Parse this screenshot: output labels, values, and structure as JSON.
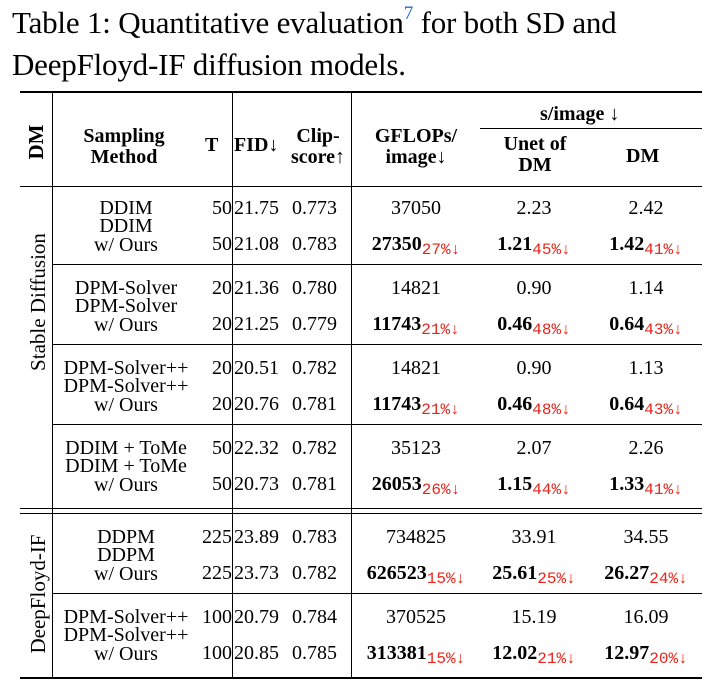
{
  "caption": {
    "text_before": "Table 1: Quantitative evaluation",
    "footnote": "7",
    "text_after": " for both SD and DeepFloyd-IF diffusion models."
  },
  "headers": {
    "dm": "DM",
    "sampling_method_1": "Sampling",
    "sampling_method_2": "Method",
    "t": "T",
    "fid": "FID↓",
    "clip_1": "Clip-",
    "clip_2": "score↑",
    "gflops_1": "GFLOPs/",
    "gflops_2": "image↓",
    "s_image": "s/image ↓",
    "unet_1": "Unet of",
    "unet_2": "DM",
    "dm_col": "DM"
  },
  "groups": [
    {
      "label": "Stable Diffusion",
      "name": "stable-diffusion"
    },
    {
      "label": "DeepFloyd-IF",
      "name": "deepfloyd-if"
    }
  ],
  "rows": [
    {
      "method": "DDIM",
      "method_2": "",
      "t": "50",
      "fid": "21.75",
      "clip": "0.773",
      "gflops": "37050",
      "gflops_red": "",
      "unet": "2.23",
      "unet_red": "",
      "dm": "2.42",
      "dm_red": ""
    },
    {
      "method": "DDIM",
      "method_2": "w/ Ours",
      "t": "50",
      "fid": "21.08",
      "clip": "0.783",
      "gflops": "27350",
      "gflops_red": "27%↓",
      "unet": "1.21",
      "unet_red": "45%↓",
      "dm": "1.42",
      "dm_red": "41%↓"
    },
    {
      "method": "DPM-Solver",
      "method_2": "",
      "t": "20",
      "fid": "21.36",
      "clip": "0.780",
      "gflops": "14821",
      "gflops_red": "",
      "unet": "0.90",
      "unet_red": "",
      "dm": "1.14",
      "dm_red": ""
    },
    {
      "method": "DPM-Solver",
      "method_2": "w/ Ours",
      "t": "20",
      "fid": "21.25",
      "clip": "0.779",
      "gflops": "11743",
      "gflops_red": "21%↓",
      "unet": "0.46",
      "unet_red": "48%↓",
      "dm": "0.64",
      "dm_red": "43%↓"
    },
    {
      "method": "DPM-Solver++",
      "method_2": "",
      "t": "20",
      "fid": "20.51",
      "clip": "0.782",
      "gflops": "14821",
      "gflops_red": "",
      "unet": "0.90",
      "unet_red": "",
      "dm": "1.13",
      "dm_red": ""
    },
    {
      "method": "DPM-Solver++",
      "method_2": "w/ Ours",
      "t": "20",
      "fid": "20.76",
      "clip": "0.781",
      "gflops": "11743",
      "gflops_red": "21%↓",
      "unet": "0.46",
      "unet_red": "48%↓",
      "dm": "0.64",
      "dm_red": "43%↓"
    },
    {
      "method": "DDIM + ToMe",
      "method_2": "",
      "t": "50",
      "fid": "22.32",
      "clip": "0.782",
      "gflops": "35123",
      "gflops_red": "",
      "unet": "2.07",
      "unet_red": "",
      "dm": "2.26",
      "dm_red": ""
    },
    {
      "method": "DDIM + ToMe",
      "method_2": "w/ Ours",
      "t": "50",
      "fid": "20.73",
      "clip": "0.781",
      "gflops": "26053",
      "gflops_red": "26%↓",
      "unet": "1.15",
      "unet_red": "44%↓",
      "dm": "1.33",
      "dm_red": "41%↓"
    },
    {
      "method": "DDPM",
      "method_2": "",
      "t": "225",
      "fid": "23.89",
      "clip": "0.783",
      "gflops": "734825",
      "gflops_red": "",
      "unet": "33.91",
      "unet_red": "",
      "dm": "34.55",
      "dm_red": ""
    },
    {
      "method": "DDPM",
      "method_2": "w/ Ours",
      "t": "225",
      "fid": "23.73",
      "clip": "0.782",
      "gflops": "626523",
      "gflops_red": "15%↓",
      "unet": "25.61",
      "unet_red": "25%↓",
      "dm": "26.27",
      "dm_red": "24%↓"
    },
    {
      "method": "DPM-Solver++",
      "method_2": "",
      "t": "100",
      "fid": "20.79",
      "clip": "0.784",
      "gflops": "370525",
      "gflops_red": "",
      "unet": "15.19",
      "unet_red": "",
      "dm": "16.09",
      "dm_red": ""
    },
    {
      "method": "DPM-Solver++",
      "method_2": "w/ Ours",
      "t": "100",
      "fid": "20.85",
      "clip": "0.785",
      "gflops": "313381",
      "gflops_red": "15%↓",
      "unet": "12.02",
      "unet_red": "21%↓",
      "dm": "12.97",
      "dm_red": "20%↓"
    }
  ]
}
